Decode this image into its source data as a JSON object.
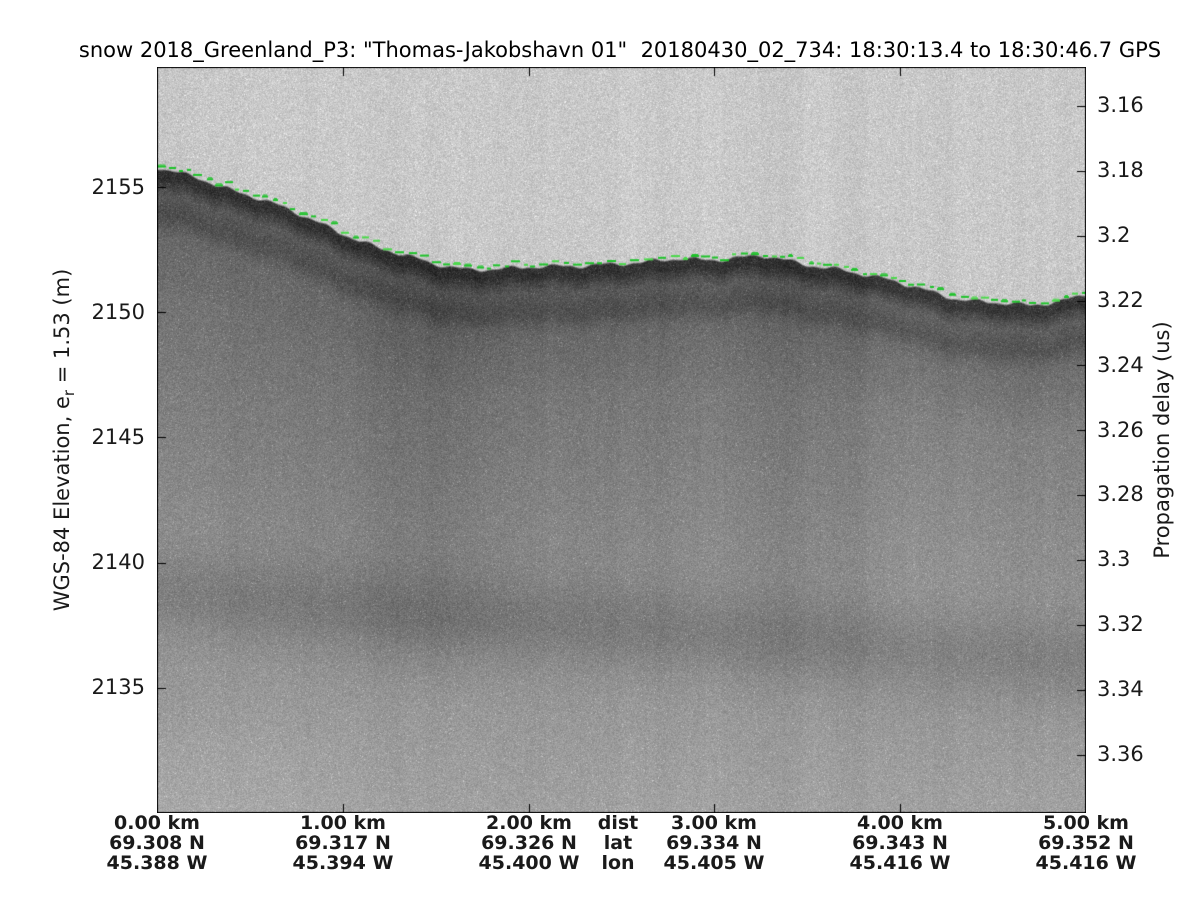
{
  "title": "snow 2018_Greenland_P3: \"Thomas-Jakobshavn 01\"  20180430_02_734: 18:30:13.4 to 18:30:46.7 GPS",
  "left_axis": {
    "label_prefix": "WGS-84 Elevation, e",
    "label_subscript": "r",
    "label_suffix": " = 1.53 (m)",
    "ticks": [
      "2155",
      "2150",
      "2145",
      "2140",
      "2135"
    ]
  },
  "right_axis": {
    "label": "Propagation delay (us)",
    "ticks": [
      "3.16",
      "3.18",
      "3.2",
      "3.22",
      "3.24",
      "3.26",
      "3.28",
      "3.3",
      "3.32",
      "3.34",
      "3.36"
    ]
  },
  "bottom_axis": {
    "row_headers": {
      "dist": "dist",
      "lat": "lat",
      "lon": "lon"
    },
    "columns": [
      {
        "dist": "0.00 km",
        "lat": "69.308 N",
        "lon": "45.388 W"
      },
      {
        "dist": "1.00 km",
        "lat": "69.317 N",
        "lon": "45.394 W"
      },
      {
        "dist": "2.00 km",
        "lat": "69.326 N",
        "lon": "45.400 W"
      },
      {
        "dist": "3.00 km",
        "lat": "69.334 N",
        "lon": "45.405 W"
      },
      {
        "dist": "4.00 km",
        "lat": "69.343 N",
        "lon": "45.416 W"
      },
      {
        "dist": "5.00 km",
        "lat": "69.352 N",
        "lon": "45.416 W"
      }
    ]
  },
  "chart_data": {
    "type": "heatmap",
    "title": "snow 2018_Greenland_P3: \"Thomas-Jakobshavn 01\"  20180430_02_734: 18:30:13.4 to 18:30:46.7 GPS",
    "xlabel": "dist (km)",
    "ylabel_left": "WGS-84 Elevation, er = 1.53 (m)",
    "ylabel_right": "Propagation delay (us)",
    "x_range_km": [
      0,
      5
    ],
    "x_ticks_km": [
      0,
      1,
      2,
      3,
      4,
      5
    ],
    "elevation_ticks_m": [
      2155,
      2150,
      2145,
      2140,
      2135
    ],
    "elevation_range_m": [
      2130.0,
      2159.8
    ],
    "delay_ticks_us": [
      3.16,
      3.18,
      3.2,
      3.22,
      3.24,
      3.26,
      3.28,
      3.3,
      3.32,
      3.34,
      3.36
    ],
    "delay_range_us": [
      3.148,
      3.378
    ],
    "surface_line_color": "#1ec32a",
    "surface_profile": {
      "x_km": [
        0.0,
        0.23,
        0.55,
        0.88,
        1.2,
        1.47,
        1.68,
        1.95,
        2.17,
        2.38,
        2.6,
        2.81,
        3.03,
        3.25,
        3.46,
        3.68,
        3.89,
        4.11,
        4.32,
        4.54,
        4.7,
        4.83,
        5.0
      ],
      "elevation_m": [
        2155.8,
        2155.4,
        2154.6,
        2153.6,
        2152.6,
        2152.0,
        2151.8,
        2151.8,
        2151.9,
        2152.0,
        2152.0,
        2152.2,
        2152.2,
        2152.3,
        2152.0,
        2151.8,
        2151.4,
        2151.0,
        2150.6,
        2150.4,
        2150.3,
        2150.5,
        2150.8
      ]
    },
    "legend": "grayscale snow-radar echogram: bright speckle noise above the air/snow interface, dark surface return tracked by a dashed green surface pick, diffuse internal firn layers below"
  }
}
